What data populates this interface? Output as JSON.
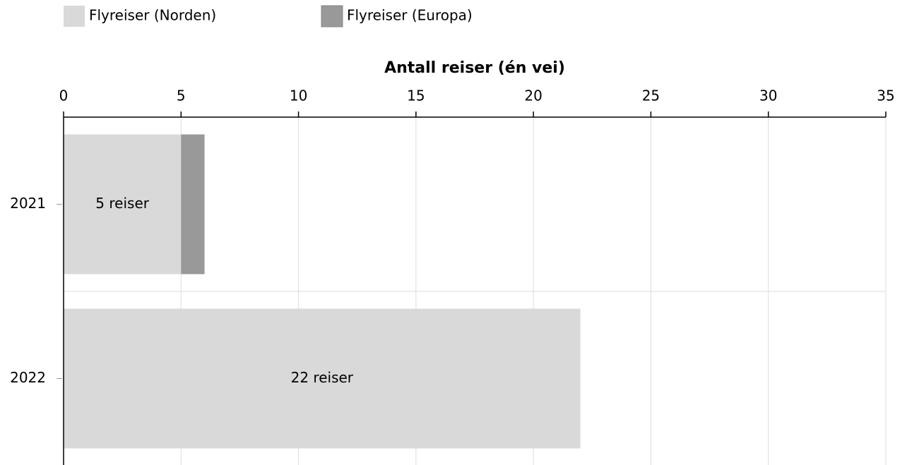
{
  "chart_data": {
    "type": "stacked-barh",
    "xlabel": "Antall reiser (én vei)",
    "categories": [
      "2021",
      "2022"
    ],
    "series": [
      {
        "name": "Flyreiser (Norden)",
        "color": "#d9d9d9",
        "values": [
          5,
          22
        ],
        "value_labels": [
          "5 reiser",
          "22 reiser"
        ]
      },
      {
        "name": "Flyreiser (Europa)",
        "color": "#999999",
        "values": [
          1,
          0
        ]
      }
    ],
    "xlim": [
      0,
      35
    ],
    "xticks": [
      0,
      5,
      10,
      15,
      20,
      25,
      30,
      35
    ],
    "grid": true,
    "legend": "top-left"
  }
}
